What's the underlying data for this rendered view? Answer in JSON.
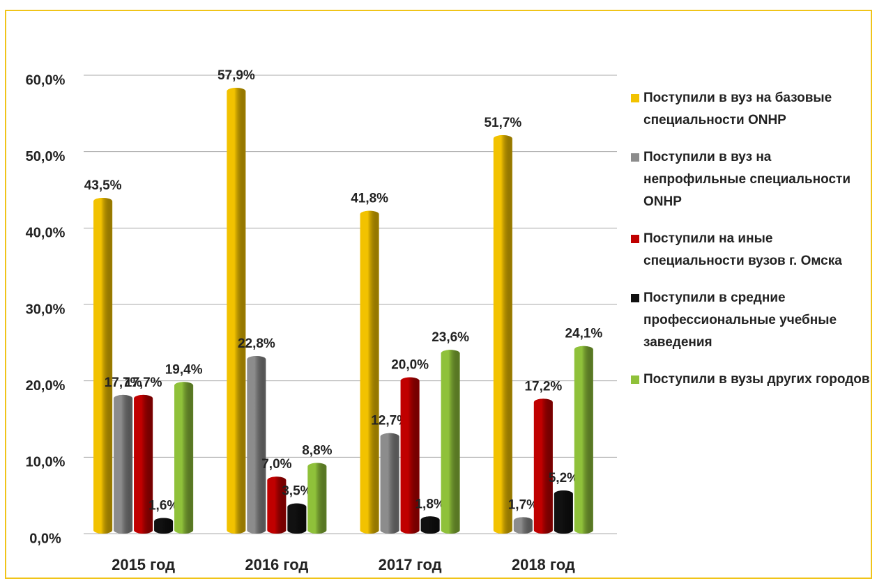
{
  "chart_data": {
    "type": "bar",
    "categories": [
      "2015 год",
      "2016 год",
      "2017 год",
      "2018 год"
    ],
    "series": [
      {
        "name": "Поступили в вуз на базовые специальности ONHP",
        "color": "#f2c200",
        "values": [
          43.5,
          57.9,
          41.8,
          51.7
        ],
        "value_labels": [
          "43,5%",
          "57,9%",
          "41,8%",
          "51,7%"
        ]
      },
      {
        "name": "Поступили в вуз на непрофильные специальности ONHP",
        "color": "#8c8c8c",
        "values": [
          17.7,
          22.8,
          12.7,
          1.7
        ],
        "value_labels": [
          "17,7%",
          "22,8%",
          "12,7%",
          "1,7%"
        ]
      },
      {
        "name": "Поступили на иные специальности вузов г. Омска",
        "color": "#c00000",
        "values": [
          17.7,
          7.0,
          20.0,
          17.2
        ],
        "value_labels": [
          "17,7%",
          "7,0%",
          "20,0%",
          "17,2%"
        ]
      },
      {
        "name": "Поступили в средние профессиональные учебные заведения",
        "color": "#111111",
        "values": [
          1.6,
          3.5,
          1.8,
          5.2
        ],
        "value_labels": [
          "1,6%",
          "3,5%",
          "1,8%",
          "5,2%"
        ]
      },
      {
        "name": "Поступили в вузы других городов",
        "color": "#8fc13a",
        "values": [
          19.4,
          8.8,
          23.6,
          24.1
        ],
        "value_labels": [
          "19,4%",
          "8,8%",
          "23,6%",
          "24,1%"
        ]
      }
    ],
    "ylim": [
      0,
      60
    ],
    "yticks": [
      {
        "value": 0,
        "label": "0,0%"
      },
      {
        "value": 10,
        "label": "10,0%"
      },
      {
        "value": 20,
        "label": "20,0%"
      },
      {
        "value": 30,
        "label": "30,0%"
      },
      {
        "value": 40,
        "label": "40,0%"
      },
      {
        "value": 50,
        "label": "50,0%"
      },
      {
        "value": 60,
        "label": "60,0%"
      }
    ],
    "grid": true,
    "legend": "right"
  }
}
